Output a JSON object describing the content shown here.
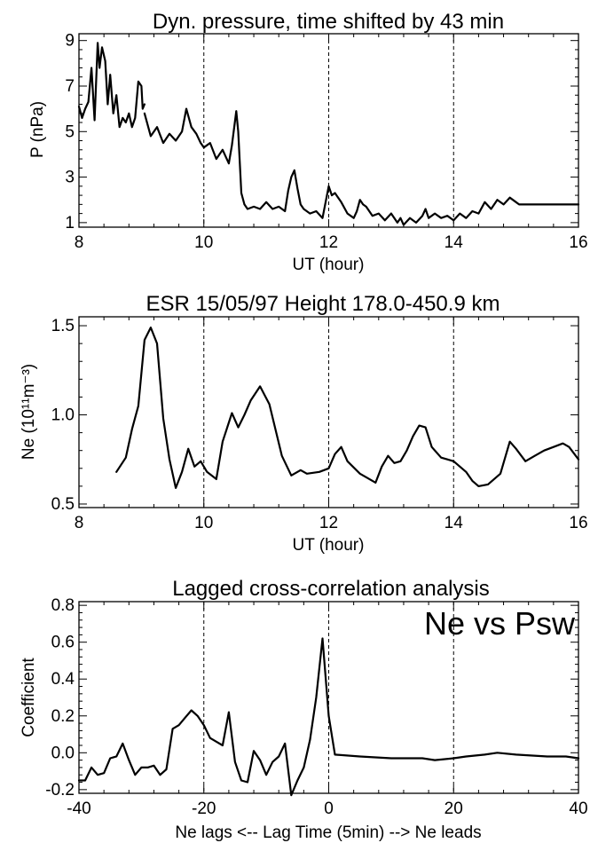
{
  "chart_data": [
    {
      "type": "line",
      "title": "Dyn. pressure,   time shifted by 43 min",
      "xlabel": "UT (hour)",
      "ylabel": "P (nPa)",
      "xlim": [
        8,
        16
      ],
      "ylim": [
        0.8,
        9.3
      ],
      "xticks": [
        8,
        10,
        12,
        14,
        16
      ],
      "xtick_labels": [
        "8",
        "10",
        "12",
        "14",
        "16"
      ],
      "yticks": [
        1,
        3,
        5,
        7,
        9
      ],
      "ytick_labels": [
        "1",
        "3",
        "5",
        "7",
        "9"
      ],
      "vlines": [
        10,
        12,
        14
      ],
      "grid": false,
      "series": [
        {
          "x": [
            8.0,
            8.05,
            8.1,
            8.15,
            8.2,
            8.25,
            8.3,
            8.33,
            8.37,
            8.42,
            8.46,
            8.5,
            8.55,
            8.6,
            8.65,
            8.7,
            8.75,
            8.8,
            8.85,
            8.9,
            8.95,
            9.0,
            9.02,
            9.05
          ],
          "y": [
            6.1,
            5.6,
            6.0,
            6.3,
            7.8,
            5.5,
            8.9,
            7.8,
            8.7,
            8.1,
            6.2,
            7.5,
            5.8,
            6.6,
            5.2,
            5.6,
            5.4,
            5.8,
            5.2,
            5.6,
            7.2,
            7.0,
            6.0,
            6.2
          ]
        },
        {
          "x": [
            9.05,
            9.15,
            9.25,
            9.35,
            9.45,
            9.55,
            9.65,
            9.72,
            9.8,
            9.88,
            9.95,
            10.0,
            10.1,
            10.2,
            10.3,
            10.4,
            10.45,
            10.52,
            10.55,
            10.6,
            10.65,
            10.7,
            10.8,
            10.9,
            11.0,
            11.1,
            11.2,
            11.3,
            11.35,
            11.4,
            11.45,
            11.5,
            11.55,
            11.6,
            11.7,
            11.8,
            11.9,
            12.0,
            12.05,
            12.1,
            12.2,
            12.3,
            12.4,
            12.45,
            12.5,
            12.55,
            12.6,
            12.7,
            12.8,
            12.9,
            13.0,
            13.1,
            13.15,
            13.2,
            13.3,
            13.4,
            13.5,
            13.55,
            13.6,
            13.7,
            13.8,
            13.9,
            14.0,
            14.1,
            14.2,
            14.3,
            14.4,
            14.5,
            14.6,
            14.7,
            14.8,
            14.9,
            15.0,
            15.05,
            15.5,
            16.0
          ],
          "y": [
            5.8,
            4.8,
            5.2,
            4.5,
            4.9,
            4.6,
            5.0,
            6.0,
            5.2,
            4.9,
            4.5,
            4.3,
            4.5,
            3.8,
            4.2,
            3.6,
            4.4,
            5.9,
            5.0,
            2.3,
            1.8,
            1.6,
            1.7,
            1.6,
            1.9,
            1.6,
            1.7,
            1.5,
            2.4,
            3.0,
            3.3,
            2.5,
            1.8,
            1.6,
            1.4,
            1.5,
            1.2,
            2.6,
            2.2,
            2.3,
            1.9,
            1.4,
            1.2,
            1.5,
            2.0,
            1.8,
            1.7,
            1.3,
            1.4,
            1.1,
            1.4,
            1.0,
            1.2,
            0.9,
            1.2,
            1.0,
            1.3,
            1.6,
            1.2,
            1.4,
            1.2,
            1.3,
            1.1,
            1.4,
            1.2,
            1.5,
            1.4,
            1.9,
            1.6,
            2.0,
            1.8,
            2.1,
            1.9,
            1.8,
            1.8,
            1.8
          ]
        }
      ]
    },
    {
      "type": "line",
      "title": "ESR 15/05/97    Height 178.0-450.9 km",
      "xlabel": "UT (hour)",
      "ylabel": "Ne (10¹¹m⁻³)",
      "xlim": [
        8,
        16
      ],
      "ylim": [
        0.48,
        1.55
      ],
      "xticks": [
        8,
        10,
        12,
        14,
        16
      ],
      "xtick_labels": [
        "8",
        "10",
        "12",
        "14",
        "16"
      ],
      "yticks": [
        0.5,
        1.0,
        1.5
      ],
      "ytick_labels": [
        "0.5",
        "1.0",
        "1.5"
      ],
      "vlines": [
        10,
        12,
        14
      ],
      "grid": false,
      "series": [
        {
          "x": [
            8.6,
            8.75,
            8.85,
            8.95,
            9.05,
            9.15,
            9.25,
            9.35,
            9.45,
            9.55,
            9.65,
            9.75,
            9.85,
            9.95,
            10.05,
            10.2,
            10.3,
            10.45,
            10.55,
            10.65,
            10.75,
            10.9,
            11.05,
            11.25,
            11.4,
            11.55,
            11.65,
            11.85,
            12.0,
            12.1,
            12.2,
            12.3,
            12.5,
            12.6,
            12.75,
            12.85,
            12.95,
            13.05,
            13.15,
            13.25,
            13.35,
            13.45,
            13.55,
            13.65,
            13.8,
            13.9,
            14.0,
            14.1,
            14.2,
            14.3,
            14.4,
            14.55,
            14.75,
            14.9,
            15.0,
            15.15,
            15.3,
            15.45,
            15.6,
            15.75,
            15.85,
            16.0
          ],
          "y": [
            0.68,
            0.76,
            0.92,
            1.05,
            1.42,
            1.49,
            1.4,
            0.98,
            0.75,
            0.59,
            0.68,
            0.81,
            0.71,
            0.74,
            0.68,
            0.64,
            0.85,
            1.01,
            0.93,
            1.0,
            1.08,
            1.16,
            1.06,
            0.77,
            0.66,
            0.69,
            0.67,
            0.68,
            0.7,
            0.78,
            0.82,
            0.74,
            0.67,
            0.65,
            0.62,
            0.71,
            0.77,
            0.73,
            0.74,
            0.8,
            0.88,
            0.94,
            0.93,
            0.82,
            0.76,
            0.75,
            0.74,
            0.71,
            0.68,
            0.63,
            0.6,
            0.61,
            0.67,
            0.85,
            0.81,
            0.74,
            0.77,
            0.8,
            0.82,
            0.84,
            0.82,
            0.75
          ]
        }
      ]
    },
    {
      "type": "line",
      "title": "Lagged cross-correlation analysis",
      "annotation": "Ne vs Psw",
      "xlabel": "Ne lags <-- Lag Time (5min) --> Ne leads",
      "ylabel": "Coefficient",
      "xlim": [
        -40,
        40
      ],
      "ylim": [
        -0.22,
        0.82
      ],
      "xticks": [
        -40,
        -20,
        0,
        20,
        40
      ],
      "xtick_labels": [
        "-40",
        "-20",
        "0",
        "20",
        "40"
      ],
      "yticks": [
        -0.2,
        0.0,
        0.2,
        0.4,
        0.6,
        0.8
      ],
      "ytick_labels": [
        "-0.2",
        "0.0",
        "0.2",
        "0.4",
        "0.6",
        "0.8"
      ],
      "vlines": [
        -20,
        0,
        20
      ],
      "grid": false,
      "series": [
        {
          "x": [
            -40,
            -39,
            -38,
            -37,
            -36,
            -35,
            -34,
            -33,
            -32,
            -31,
            -30,
            -29,
            -28,
            -27,
            -26,
            -25,
            -24,
            -23,
            -22,
            -21,
            -20,
            -19,
            -18,
            -17,
            -16,
            -15,
            -14,
            -13,
            -12,
            -11,
            -10,
            -9,
            -8,
            -7,
            -6,
            -5,
            -4,
            -3,
            -2,
            -1,
            0,
            1,
            5,
            10,
            15,
            17,
            20,
            22,
            25,
            27,
            30,
            35,
            38,
            40
          ],
          "y": [
            -0.15,
            -0.15,
            -0.08,
            -0.12,
            -0.11,
            -0.03,
            -0.02,
            0.05,
            -0.04,
            -0.12,
            -0.08,
            -0.08,
            -0.07,
            -0.12,
            -0.09,
            0.13,
            0.15,
            0.19,
            0.23,
            0.2,
            0.15,
            0.08,
            0.06,
            0.04,
            0.22,
            -0.05,
            -0.15,
            -0.16,
            0.01,
            -0.04,
            -0.12,
            -0.05,
            -0.02,
            0.05,
            -0.23,
            -0.15,
            -0.08,
            0.07,
            0.3,
            0.62,
            0.2,
            -0.01,
            -0.02,
            -0.03,
            -0.03,
            -0.04,
            -0.03,
            -0.02,
            -0.01,
            0.0,
            -0.01,
            -0.02,
            -0.02,
            -0.03
          ]
        }
      ]
    }
  ]
}
